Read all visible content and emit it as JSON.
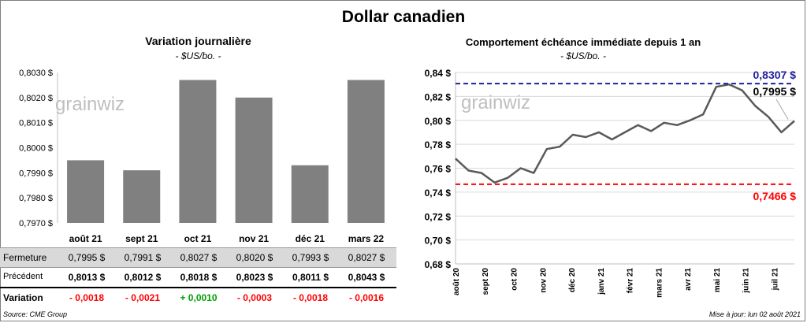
{
  "page_title": "Dollar canadien",
  "left_chart": {
    "title": "Variation  journalière",
    "unit": "- $US/bo. -",
    "watermark": "grainwiz"
  },
  "right_chart": {
    "title": "Comportement échéance immédiate depuis 1 an",
    "unit": "- $US/bo. -",
    "watermark": "grainwiz"
  },
  "table": {
    "row_labels": {
      "close": "Fermeture",
      "prev": "Précédent",
      "variation": "Variation"
    },
    "close": [
      "0,7995  $",
      "0,7991  $",
      "0,8027  $",
      "0,8020  $",
      "0,7993  $",
      "0,8027  $"
    ],
    "prev": [
      "0,8013  $",
      "0,8012  $",
      "0,8018  $",
      "0,8023  $",
      "0,8011  $",
      "0,8043  $"
    ],
    "variation": [
      "- 0,0018",
      "- 0,0021",
      "+ 0,0010",
      "- 0,0003",
      "- 0,0018",
      "- 0,0016"
    ],
    "variation_colors": [
      "#ff0000",
      "#ff0000",
      "#00a000",
      "#ff0000",
      "#ff0000",
      "#ff0000"
    ]
  },
  "footer": {
    "source": "Source: CME Group",
    "updated": "Mise à jour: lun 02 août 2021"
  },
  "colors": {
    "bar": "#808080",
    "line": "#595959",
    "max_line": "#1f1fa0",
    "min_line": "#ff0000"
  },
  "chart_data": [
    {
      "type": "bar",
      "title": "Variation  journalière",
      "subtitle": "- $US/bo. -",
      "categories": [
        "août 21",
        "sept 21",
        "oct 21",
        "nov 21",
        "déc 21",
        "mars 22"
      ],
      "values": [
        0.7995,
        0.7991,
        0.8027,
        0.802,
        0.7993,
        0.8027
      ],
      "ylim": [
        0.797,
        0.803
      ],
      "yticks": [
        "0,7970 $",
        "0,7980 $",
        "0,7990 $",
        "0,8000 $",
        "0,8010 $",
        "0,8020 $",
        "0,8030 $"
      ],
      "grid": false
    },
    {
      "type": "line",
      "title": "Comportement échéance immédiate depuis 1 an",
      "subtitle": "- $US/bo. -",
      "x": [
        "2020-08-03",
        "2020-08-17",
        "2020-08-31",
        "2020-09-14",
        "2020-09-28",
        "2020-10-12",
        "2020-10-26",
        "2020-11-09",
        "2020-11-23",
        "2020-12-07",
        "2020-12-21",
        "2021-01-04",
        "2021-01-18",
        "2021-02-01",
        "2021-02-15",
        "2021-03-01",
        "2021-03-15",
        "2021-03-29",
        "2021-04-12",
        "2021-04-26",
        "2021-05-10",
        "2021-05-24",
        "2021-06-07",
        "2021-06-21",
        "2021-07-05",
        "2021-07-19",
        "2021-08-02"
      ],
      "y": [
        0.768,
        0.758,
        0.756,
        0.748,
        0.752,
        0.76,
        0.756,
        0.776,
        0.778,
        0.788,
        0.786,
        0.79,
        0.784,
        0.79,
        0.796,
        0.791,
        0.798,
        0.796,
        0.8,
        0.805,
        0.828,
        0.83,
        0.825,
        0.812,
        0.803,
        0.79,
        0.7995
      ],
      "ylim": [
        0.68,
        0.84
      ],
      "yticks": [
        "0,68 $",
        "0,70 $",
        "0,72 $",
        "0,74 $",
        "0,76 $",
        "0,78 $",
        "0,80 $",
        "0,82 $",
        "0,84 $"
      ],
      "xticks": [
        "août 20",
        "sept 20",
        "oct 20",
        "nov 20",
        "déc 20",
        "janv 21",
        "févr 21",
        "mars 21",
        "avr 21",
        "mai 21",
        "juin 21",
        "juil 21"
      ],
      "max": {
        "value": 0.8307,
        "label": "0,8307  $"
      },
      "min": {
        "value": 0.7466,
        "label": "0,7466  $"
      },
      "last": {
        "value": 0.7995,
        "label": "0,7995  $"
      },
      "grid": true
    }
  ]
}
